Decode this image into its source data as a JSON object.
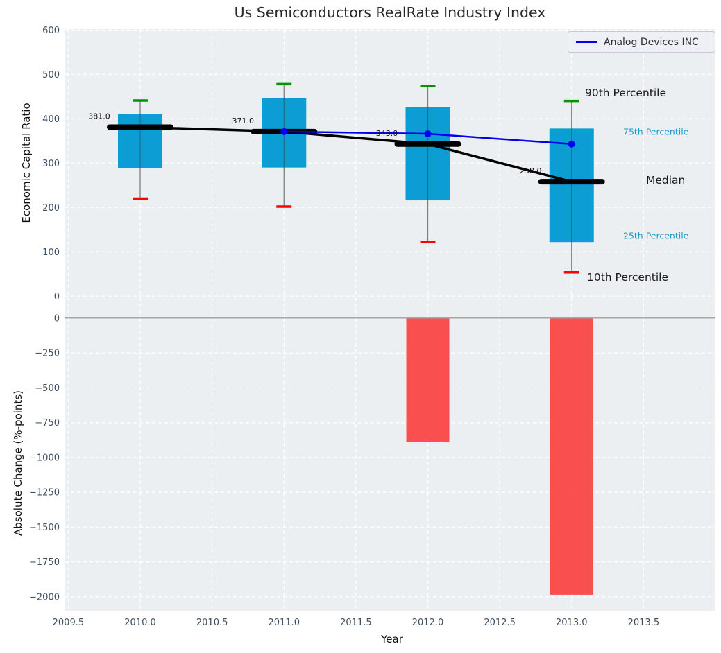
{
  "title": "Us Semiconductors RealRate Industry Index",
  "legend": {
    "label": "Analog Devices INC"
  },
  "axes": {
    "x": {
      "label": "Year",
      "lim": [
        2009.474,
        2014.0
      ],
      "ticks": [
        {
          "v": 2009.5,
          "t": "2009.5"
        },
        {
          "v": 2010.0,
          "t": "2010.0"
        },
        {
          "v": 2010.5,
          "t": "2010.5"
        },
        {
          "v": 2011.0,
          "t": "2011.0"
        },
        {
          "v": 2011.5,
          "t": "2011.5"
        },
        {
          "v": 2012.0,
          "t": "2012.0"
        },
        {
          "v": 2012.5,
          "t": "2012.5"
        },
        {
          "v": 2013.0,
          "t": "2013.0"
        },
        {
          "v": 2013.5,
          "t": "2013.5"
        }
      ]
    },
    "top": {
      "label": "Economic Capital Ratio",
      "lim": [
        -48,
        602
      ],
      "ticks": [
        {
          "v": 0,
          "t": "0"
        },
        {
          "v": 100,
          "t": "100"
        },
        {
          "v": 200,
          "t": "200"
        },
        {
          "v": 300,
          "t": "300"
        },
        {
          "v": 400,
          "t": "400"
        },
        {
          "v": 500,
          "t": "500"
        },
        {
          "v": 600,
          "t": "600"
        }
      ]
    },
    "bottom": {
      "label": "Absolute Change (%-points)",
      "lim": [
        -2100,
        0
      ],
      "ticks": [
        {
          "v": 0,
          "t": "0"
        },
        {
          "v": -250,
          "t": "−250"
        },
        {
          "v": -500,
          "t": "−500"
        },
        {
          "v": -750,
          "t": "−750"
        },
        {
          "v": -1000,
          "t": "−1000"
        },
        {
          "v": -1250,
          "t": "−1250"
        },
        {
          "v": -1500,
          "t": "−1500"
        },
        {
          "v": -1750,
          "t": "−1750"
        },
        {
          "v": -2000,
          "t": "−2000"
        }
      ]
    }
  },
  "annotations": {
    "p90": "90th Percentile",
    "p75": "75th Percentile",
    "median": "Median",
    "p25": "25th Percentile",
    "p10": "10th Percentile"
  },
  "colors": {
    "box": "#0c9dd5",
    "bar_negative": "#fb4141",
    "cap_high": "#029402",
    "cap_low": "#fe0000",
    "median": "#000000",
    "overlay_line": "#0000ee",
    "plot_bg": "#ebeff1",
    "grid": "#ffffff",
    "tick_label": "#3d4f63",
    "annotation_accent": "#189ccc",
    "whisker": "#7f7f7f",
    "whisker_inner": "#1f6f93",
    "baseline": "#a6a6a6",
    "value_label": "#111111"
  },
  "chart_data": [
    {
      "type": "boxplot",
      "title": "Us Semiconductors RealRate Industry Index",
      "xlabel": "Year",
      "ylabel": "Economic Capital Ratio",
      "x": [
        2010,
        2011,
        2012,
        2013
      ],
      "percentiles": {
        "p90": [
          441,
          478,
          474,
          440
        ],
        "p75": [
          410,
          446,
          427,
          378
        ],
        "median": [
          381,
          371,
          343,
          258
        ],
        "p25": [
          288,
          290,
          216,
          122
        ],
        "p10": [
          220,
          202,
          122,
          54
        ]
      },
      "median_labels": [
        "381.0",
        "371.0",
        "343.0",
        "258.0"
      ],
      "overlay_series": [
        {
          "name": "Analog Devices INC",
          "x": [
            2011,
            2012,
            2013
          ],
          "values": [
            371,
            366,
            343
          ]
        }
      ],
      "ylim": [
        -48,
        602
      ],
      "legend_position": "upper right",
      "grid": true
    },
    {
      "type": "bar",
      "xlabel": "Year",
      "ylabel": "Absolute Change (%-points)",
      "x": [
        2012,
        2013
      ],
      "values": [
        -890,
        -1985
      ],
      "ylim": [
        -2100,
        0
      ],
      "grid": true
    }
  ]
}
